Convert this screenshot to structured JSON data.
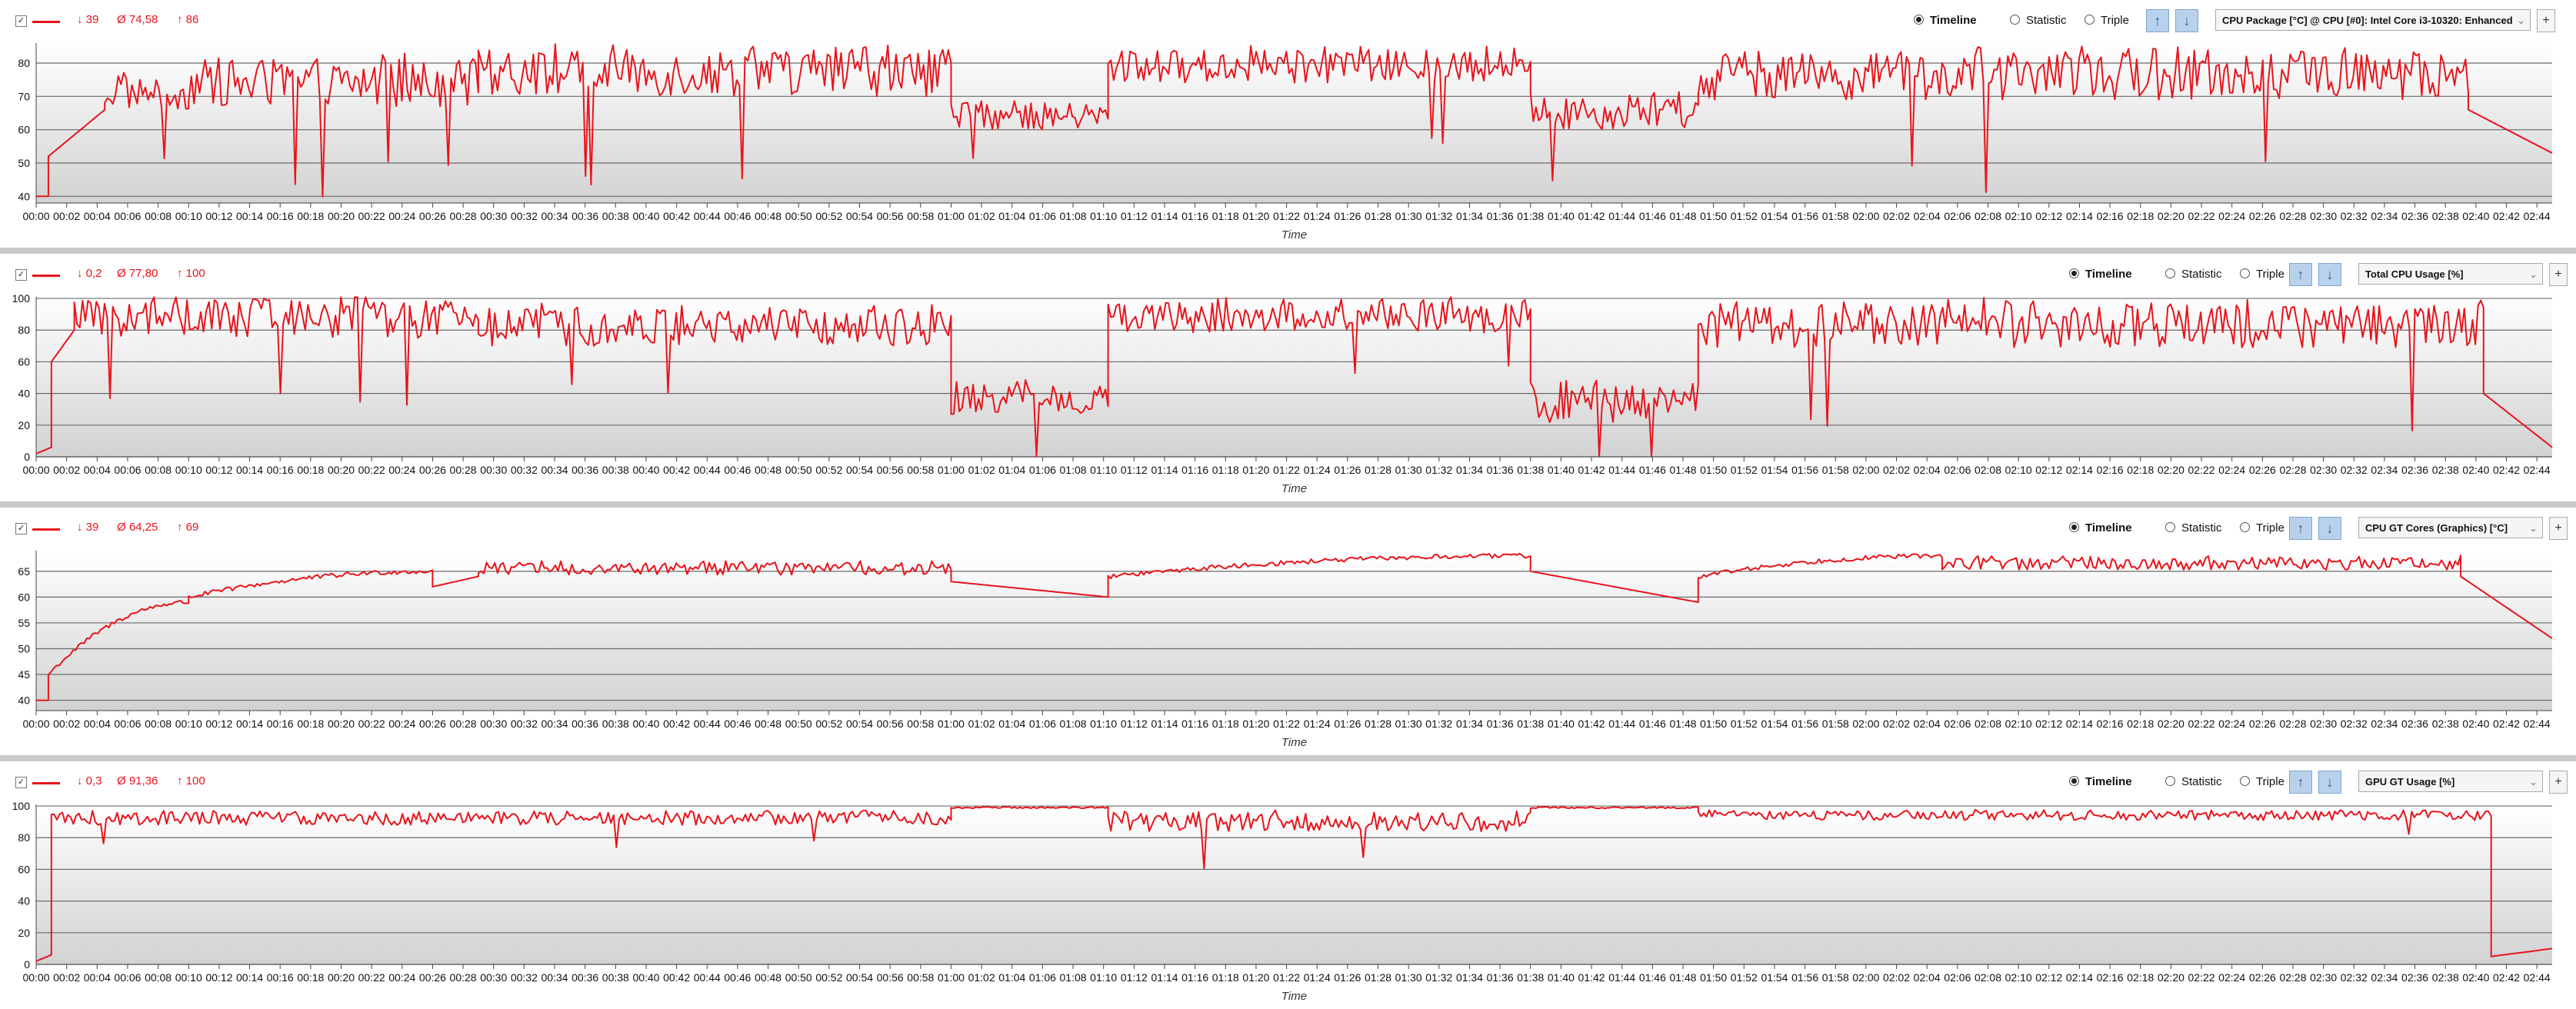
{
  "colors": {
    "series": "#e8141c",
    "plot_top": "#ffffff",
    "plot_bottom": "#d2d2d2",
    "grid": "#6b6b6b",
    "separator": "#c9c9c9"
  },
  "icons": {
    "checkbox": "checkbox-icon",
    "up": "arrow-up-icon",
    "down": "arrow-down-icon",
    "add": "plus-icon"
  },
  "common": {
    "mode_options": [
      "Timeline",
      "Statistic",
      "Triple"
    ],
    "selected_mode": "Timeline",
    "add_label": "+",
    "checkbox_mark": "✓",
    "up_glyph": "↑",
    "down_glyph": "↓",
    "dropdown_caret": "⌄",
    "x_title": "Time",
    "x_ticks": [
      "00:00",
      "00:02",
      "00:04",
      "00:06",
      "00:08",
      "00:10",
      "00:12",
      "00:14",
      "00:16",
      "00:18",
      "00:20",
      "00:22",
      "00:24",
      "00:26",
      "00:28",
      "00:30",
      "00:32",
      "00:34",
      "00:36",
      "00:38",
      "00:40",
      "00:42",
      "00:44",
      "00:46",
      "00:48",
      "00:50",
      "00:52",
      "00:54",
      "00:56",
      "00:58",
      "01:00",
      "01:02",
      "01:04",
      "01:06",
      "01:08",
      "01:10",
      "01:12",
      "01:14",
      "01:16",
      "01:18",
      "01:20",
      "01:22",
      "01:24",
      "01:26",
      "01:28",
      "01:30",
      "01:32",
      "01:34",
      "01:36",
      "01:38",
      "01:40",
      "01:42",
      "01:44",
      "01:46",
      "01:48",
      "01:50",
      "01:52",
      "01:54",
      "01:56",
      "01:58",
      "02:00",
      "02:02",
      "02:04",
      "02:06",
      "02:08",
      "02:10",
      "02:12",
      "02:14",
      "02:16",
      "02:18",
      "02:20",
      "02:22",
      "02:24",
      "02:26",
      "02:28",
      "02:30",
      "02:32",
      "02:34",
      "02:36",
      "02:38",
      "02:40",
      "02:42",
      "02:44"
    ]
  },
  "panels": [
    {
      "min": "↓ 39",
      "avg": "Ø 74,58",
      "max": "↑ 86",
      "sensor": "CPU Package [°C] @ CPU [#0]: Intel Core i3-10320: Enhanced"
    },
    {
      "min": "↓ 0,2",
      "avg": "Ø 77,80",
      "max": "↑ 100",
      "sensor": "Total CPU Usage [%]"
    },
    {
      "min": "↓ 39",
      "avg": "Ø 64,25",
      "max": "↑ 69",
      "sensor": "CPU GT Cores (Graphics) [°C]"
    },
    {
      "min": "↓ 0,3",
      "avg": "Ø 91,36",
      "max": "↑ 100",
      "sensor": "GPU GT Usage [%]"
    }
  ],
  "chart_data": [
    {
      "type": "line",
      "title": "CPU Package [°C] @ CPU [#0]: Intel Core i3-10320: Enhanced",
      "xlabel": "Time",
      "ylabel": "",
      "ylim": [
        38,
        86
      ],
      "yticks": [
        40,
        50,
        60,
        70,
        80
      ],
      "grid": true,
      "x_unit": "minutes",
      "x_range": [
        0,
        165
      ],
      "segments": [
        {
          "t": [
            0,
            0.8
          ],
          "kind": "ramp",
          "from": 40,
          "to": 40
        },
        {
          "t": [
            0.8,
            4.5
          ],
          "kind": "ramp",
          "from": 52,
          "to": 66
        },
        {
          "t": [
            4.5,
            10
          ],
          "kind": "noise",
          "mean": 71,
          "amp": 5,
          "dips": 1
        },
        {
          "t": [
            10,
            29
          ],
          "kind": "noise",
          "mean": 74,
          "amp": 7,
          "dips": 4
        },
        {
          "t": [
            29,
            60
          ],
          "kind": "noise",
          "mean": 77,
          "amp": 7,
          "dips": 3
        },
        {
          "t": [
            60,
            70.3
          ],
          "kind": "noise",
          "mean": 64,
          "amp": 4,
          "dips": 1
        },
        {
          "t": [
            70.3,
            98
          ],
          "kind": "noise",
          "mean": 79,
          "amp": 5,
          "dips": 2
        },
        {
          "t": [
            98,
            109
          ],
          "kind": "noise",
          "mean": 65,
          "amp": 5,
          "dips": 1
        },
        {
          "t": [
            109,
            159.5
          ],
          "kind": "noise",
          "mean": 76,
          "amp": 7,
          "dips": 3
        },
        {
          "t": [
            159.5,
            165
          ],
          "kind": "ramp",
          "from": 66,
          "to": 53
        }
      ]
    },
    {
      "type": "line",
      "title": "Total CPU Usage [%]",
      "xlabel": "Time",
      "ylabel": "",
      "ylim": [
        0,
        101
      ],
      "yticks": [
        0,
        20,
        40,
        60,
        80,
        100
      ],
      "grid": true,
      "x_unit": "minutes",
      "x_range": [
        0,
        165
      ],
      "segments": [
        {
          "t": [
            0,
            1
          ],
          "kind": "ramp",
          "from": 2,
          "to": 6
        },
        {
          "t": [
            1,
            2.5
          ],
          "kind": "ramp",
          "from": 60,
          "to": 80
        },
        {
          "t": [
            2.5,
            29
          ],
          "kind": "noise",
          "mean": 87,
          "amp": 12,
          "dips": 4
        },
        {
          "t": [
            29,
            60
          ],
          "kind": "noise",
          "mean": 82,
          "amp": 12,
          "dips": 2
        },
        {
          "t": [
            60,
            70.3
          ],
          "kind": "noise",
          "mean": 36,
          "amp": 10,
          "dips": 1
        },
        {
          "t": [
            70.3,
            98
          ],
          "kind": "noise",
          "mean": 88,
          "amp": 10,
          "dips": 2
        },
        {
          "t": [
            98,
            109
          ],
          "kind": "noise",
          "mean": 33,
          "amp": 12,
          "dips": 2
        },
        {
          "t": [
            109,
            160.5
          ],
          "kind": "noise",
          "mean": 83,
          "amp": 14,
          "dips": 3
        },
        {
          "t": [
            160.5,
            165
          ],
          "kind": "ramp",
          "from": 40,
          "to": 6
        }
      ]
    },
    {
      "type": "line",
      "title": "CPU GT Cores (Graphics) [°C]",
      "xlabel": "Time",
      "ylabel": "",
      "ylim": [
        38,
        69
      ],
      "yticks": [
        40,
        45,
        50,
        55,
        60,
        65
      ],
      "grid": true,
      "x_unit": "minutes",
      "x_range": [
        0,
        165
      ],
      "segments": [
        {
          "t": [
            0,
            0.8
          ],
          "kind": "ramp",
          "from": 40,
          "to": 40
        },
        {
          "t": [
            0.8,
            10
          ],
          "kind": "curve",
          "from": 45,
          "to": 59
        },
        {
          "t": [
            10,
            26
          ],
          "kind": "curve",
          "from": 60,
          "to": 65
        },
        {
          "t": [
            26,
            29
          ],
          "kind": "ramp",
          "from": 62,
          "to": 64
        },
        {
          "t": [
            29,
            60
          ],
          "kind": "noise",
          "mean": 65.5,
          "amp": 1.2,
          "dips": 0
        },
        {
          "t": [
            60,
            70.3
          ],
          "kind": "ramp",
          "from": 63,
          "to": 60
        },
        {
          "t": [
            70.3,
            98
          ],
          "kind": "curve",
          "from": 64,
          "to": 68
        },
        {
          "t": [
            98,
            109
          ],
          "kind": "ramp",
          "from": 65,
          "to": 59
        },
        {
          "t": [
            109,
            125
          ],
          "kind": "curve",
          "from": 64,
          "to": 68
        },
        {
          "t": [
            125,
            159
          ],
          "kind": "noise",
          "mean": 66.5,
          "amp": 1.2,
          "dips": 0
        },
        {
          "t": [
            159,
            165
          ],
          "kind": "ramp",
          "from": 64,
          "to": 52
        }
      ]
    },
    {
      "type": "line",
      "title": "GPU GT Usage [%]",
      "xlabel": "Time",
      "ylabel": "",
      "ylim": [
        0,
        101
      ],
      "yticks": [
        0,
        20,
        40,
        60,
        80,
        100
      ],
      "grid": true,
      "x_unit": "minutes",
      "x_range": [
        0,
        165
      ],
      "segments": [
        {
          "t": [
            0,
            1
          ],
          "kind": "ramp",
          "from": 2,
          "to": 6
        },
        {
          "t": [
            1,
            60
          ],
          "kind": "noise",
          "mean": 92,
          "amp": 4,
          "dips": 3
        },
        {
          "t": [
            60,
            70.3
          ],
          "kind": "noise",
          "mean": 99,
          "amp": 0.5,
          "dips": 0
        },
        {
          "t": [
            70.3,
            98
          ],
          "kind": "noise",
          "mean": 90,
          "amp": 6,
          "dips": 2
        },
        {
          "t": [
            98,
            109
          ],
          "kind": "noise",
          "mean": 99,
          "amp": 0.5,
          "dips": 0
        },
        {
          "t": [
            109,
            161
          ],
          "kind": "noise",
          "mean": 94,
          "amp": 3,
          "dips": 1
        },
        {
          "t": [
            161,
            165
          ],
          "kind": "ramp",
          "from": 5,
          "to": 10
        }
      ]
    }
  ]
}
